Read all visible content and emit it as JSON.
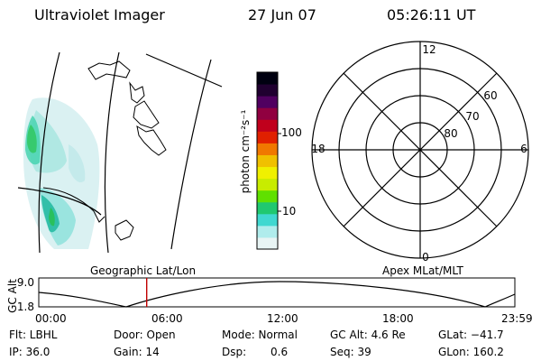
{
  "header": {
    "instrument": "Ultraviolet Imager",
    "date": "27 Jun 07",
    "time": "05:26:11 UT"
  },
  "colorbar": {
    "unit_label": "photon cm⁻²s⁻¹",
    "ticks": [
      "100",
      "10"
    ],
    "colors": [
      "#e8f4f4",
      "#b0ecec",
      "#40d8d0",
      "#20c870",
      "#60e000",
      "#c8ec00",
      "#f0f000",
      "#f0c000",
      "#f07800",
      "#e02000",
      "#c0001c",
      "#900040",
      "#500060",
      "#200030",
      "#000010"
    ]
  },
  "polar_plot": {
    "mlt_labels": [
      "12",
      "18",
      "6",
      "0"
    ],
    "mlat_labels": [
      "60",
      "70",
      "80"
    ]
  },
  "timeline": {
    "axis_label": "GC Alt",
    "y_ticks": [
      "9.0",
      "1.8"
    ],
    "left_title": "Geographic Lat/Lon",
    "right_title": "Apex MLat/MLT",
    "x_ticks": [
      "00:00",
      "06:00",
      "12:00",
      "18:00",
      "23:59"
    ],
    "marker_time_hours": 5.44,
    "marker_color": "#c00000"
  },
  "info": {
    "flt": "Flt: LBHL",
    "ip": "IP: 36.0",
    "door": "Door: Open",
    "gain": "Gain: 14",
    "mode": "Mode: Normal",
    "dsp_label": "Dsp:",
    "dsp_value": "0.6",
    "gc_alt": "GC Alt: 4.6 Re",
    "seq": "Seq: 39",
    "glat": "GLat: −41.7",
    "glon": "GLon: 160.2"
  }
}
